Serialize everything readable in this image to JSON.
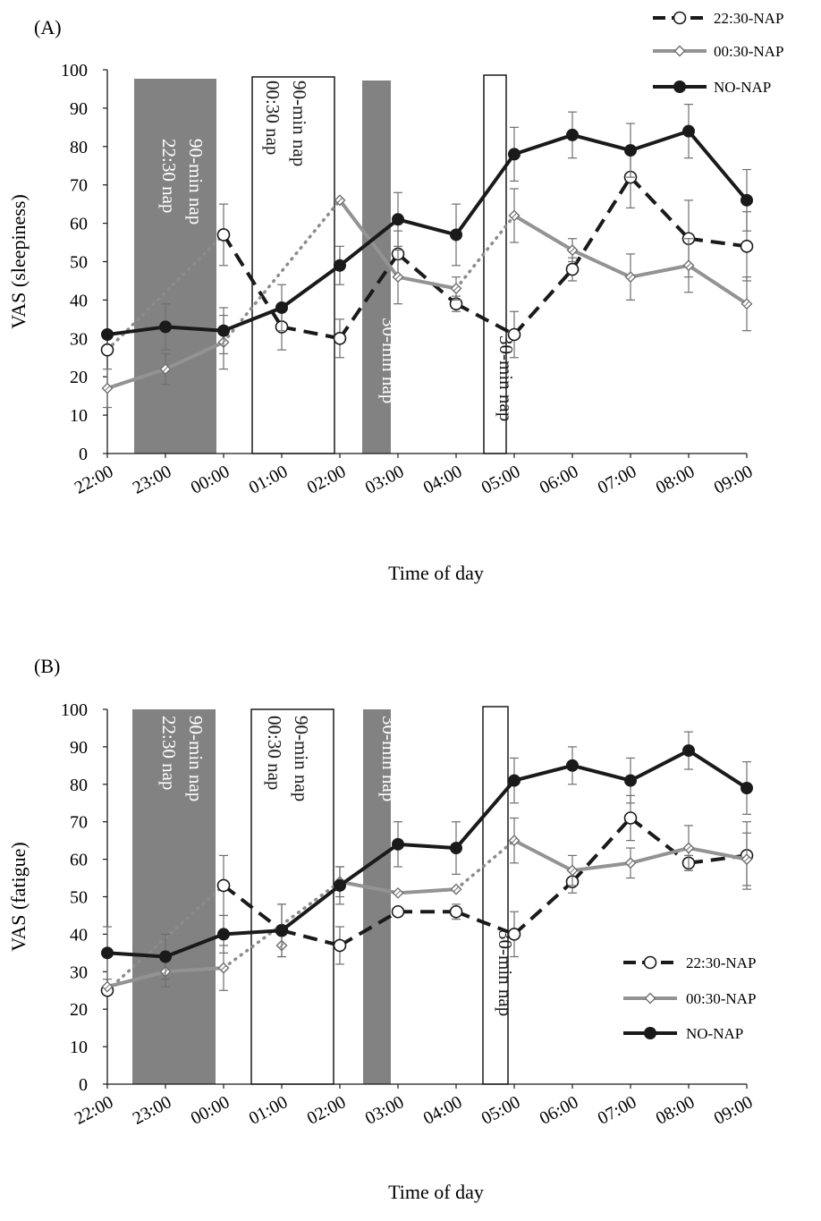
{
  "chart_data": [
    {
      "type": "line",
      "panel_label": "(A)",
      "ylabel": "VAS (sleepiness)",
      "xlabel": "Time of day",
      "categories": [
        "22:00",
        "23:00",
        "00:00",
        "01:00",
        "02:00",
        "03:00",
        "04:00",
        "05:00",
        "06:00",
        "07:00",
        "08:00",
        "09:00"
      ],
      "y_ticks": [
        "0",
        "10",
        "20",
        "30",
        "40",
        "50",
        "60",
        "70",
        "80",
        "90",
        "100"
      ],
      "ylim": [
        0,
        100
      ],
      "legend": {
        "position": "top-right"
      },
      "series": [
        {
          "name": "22:30-NAP",
          "color": "#1a1a1a",
          "style": "dashed",
          "marker": "open-circle",
          "values": [
            27,
            null,
            57,
            33,
            30,
            52,
            39,
            31,
            48,
            72,
            56,
            54
          ],
          "errors": [
            null,
            null,
            8,
            6,
            5,
            6,
            2,
            6,
            3,
            8,
            10,
            9
          ],
          "dotted_segments": [
            [
              0,
              2
            ]
          ]
        },
        {
          "name": "00:30-NAP",
          "color": "#939393",
          "style": "solid",
          "marker": "diamond",
          "values": [
            17,
            22,
            29,
            38,
            66,
            46,
            43,
            62,
            53,
            46,
            49,
            39
          ],
          "errors": [
            5,
            4,
            7,
            null,
            0,
            7,
            3,
            7,
            3,
            6,
            7,
            7
          ],
          "dotted_segments": [
            [
              2,
              4
            ],
            [
              6,
              7
            ]
          ]
        },
        {
          "name": "NO-NAP",
          "color": "#1a1a1a",
          "style": "solid",
          "marker": "filled-circle",
          "values": [
            31,
            33,
            32,
            38,
            49,
            61,
            57,
            78,
            83,
            79,
            84,
            66
          ],
          "errors": [
            null,
            6,
            6,
            6,
            5,
            7,
            8,
            7,
            6,
            7,
            7,
            8
          ],
          "dotted_segments": []
        }
      ],
      "nap_periods": [
        {
          "label1": "22:30 nap",
          "label2": "90-min nap",
          "fill": "gray"
        },
        {
          "label1": "00:30 nap",
          "label2": "90-min nap",
          "fill": "white"
        },
        {
          "label1": "30-min nap",
          "label2": "",
          "fill": "gray"
        },
        {
          "label1": "30-min nap",
          "label2": "",
          "fill": "white"
        }
      ]
    },
    {
      "type": "line",
      "panel_label": "(B)",
      "ylabel": "VAS (fatigue)",
      "xlabel": "Time of day",
      "categories": [
        "22:00",
        "23:00",
        "00:00",
        "01:00",
        "02:00",
        "03:00",
        "04:00",
        "05:00",
        "06:00",
        "07:00",
        "08:00",
        "09:00"
      ],
      "y_ticks": [
        "0",
        "10",
        "20",
        "30",
        "40",
        "50",
        "60",
        "70",
        "80",
        "90",
        "100"
      ],
      "ylim": [
        0,
        100
      ],
      "legend": {
        "position": "bottom-right"
      },
      "series": [
        {
          "name": "22:30-NAP",
          "color": "#1a1a1a",
          "style": "dashed",
          "marker": "open-circle",
          "values": [
            25,
            null,
            53,
            41,
            37,
            46,
            46,
            40,
            54,
            71,
            59,
            61
          ],
          "errors": [
            null,
            null,
            8,
            7,
            5,
            null,
            2,
            6,
            3,
            6,
            2,
            9
          ],
          "dotted_segments": [
            [
              0,
              2
            ]
          ]
        },
        {
          "name": "00:30-NAP",
          "color": "#939393",
          "style": "solid",
          "marker": "diamond",
          "values": [
            26,
            30,
            31,
            37,
            54,
            51,
            52,
            65,
            57,
            59,
            63,
            60
          ],
          "errors": [
            null,
            4,
            6,
            null,
            4,
            null,
            null,
            6,
            4,
            4,
            6,
            7
          ],
          "dotted_segments": [
            [
              2,
              4
            ],
            [
              6,
              7
            ]
          ]
        },
        {
          "name": "NO-NAP",
          "color": "#1a1a1a",
          "style": "solid",
          "marker": "filled-circle",
          "values": [
            35,
            34,
            40,
            41,
            53,
            64,
            63,
            81,
            85,
            81,
            89,
            79
          ],
          "errors": [
            7,
            6,
            5,
            7,
            5,
            6,
            7,
            6,
            5,
            6,
            5,
            7
          ],
          "dotted_segments": []
        }
      ],
      "nap_periods": [
        {
          "label1": "22:30 nap",
          "label2": "90-min nap",
          "fill": "gray"
        },
        {
          "label1": "00:30 nap",
          "label2": "90-min nap",
          "fill": "white"
        },
        {
          "label1": "30-min nap",
          "label2": "",
          "fill": "gray"
        },
        {
          "label1": "30-min nap",
          "label2": "",
          "fill": "white"
        }
      ]
    }
  ]
}
